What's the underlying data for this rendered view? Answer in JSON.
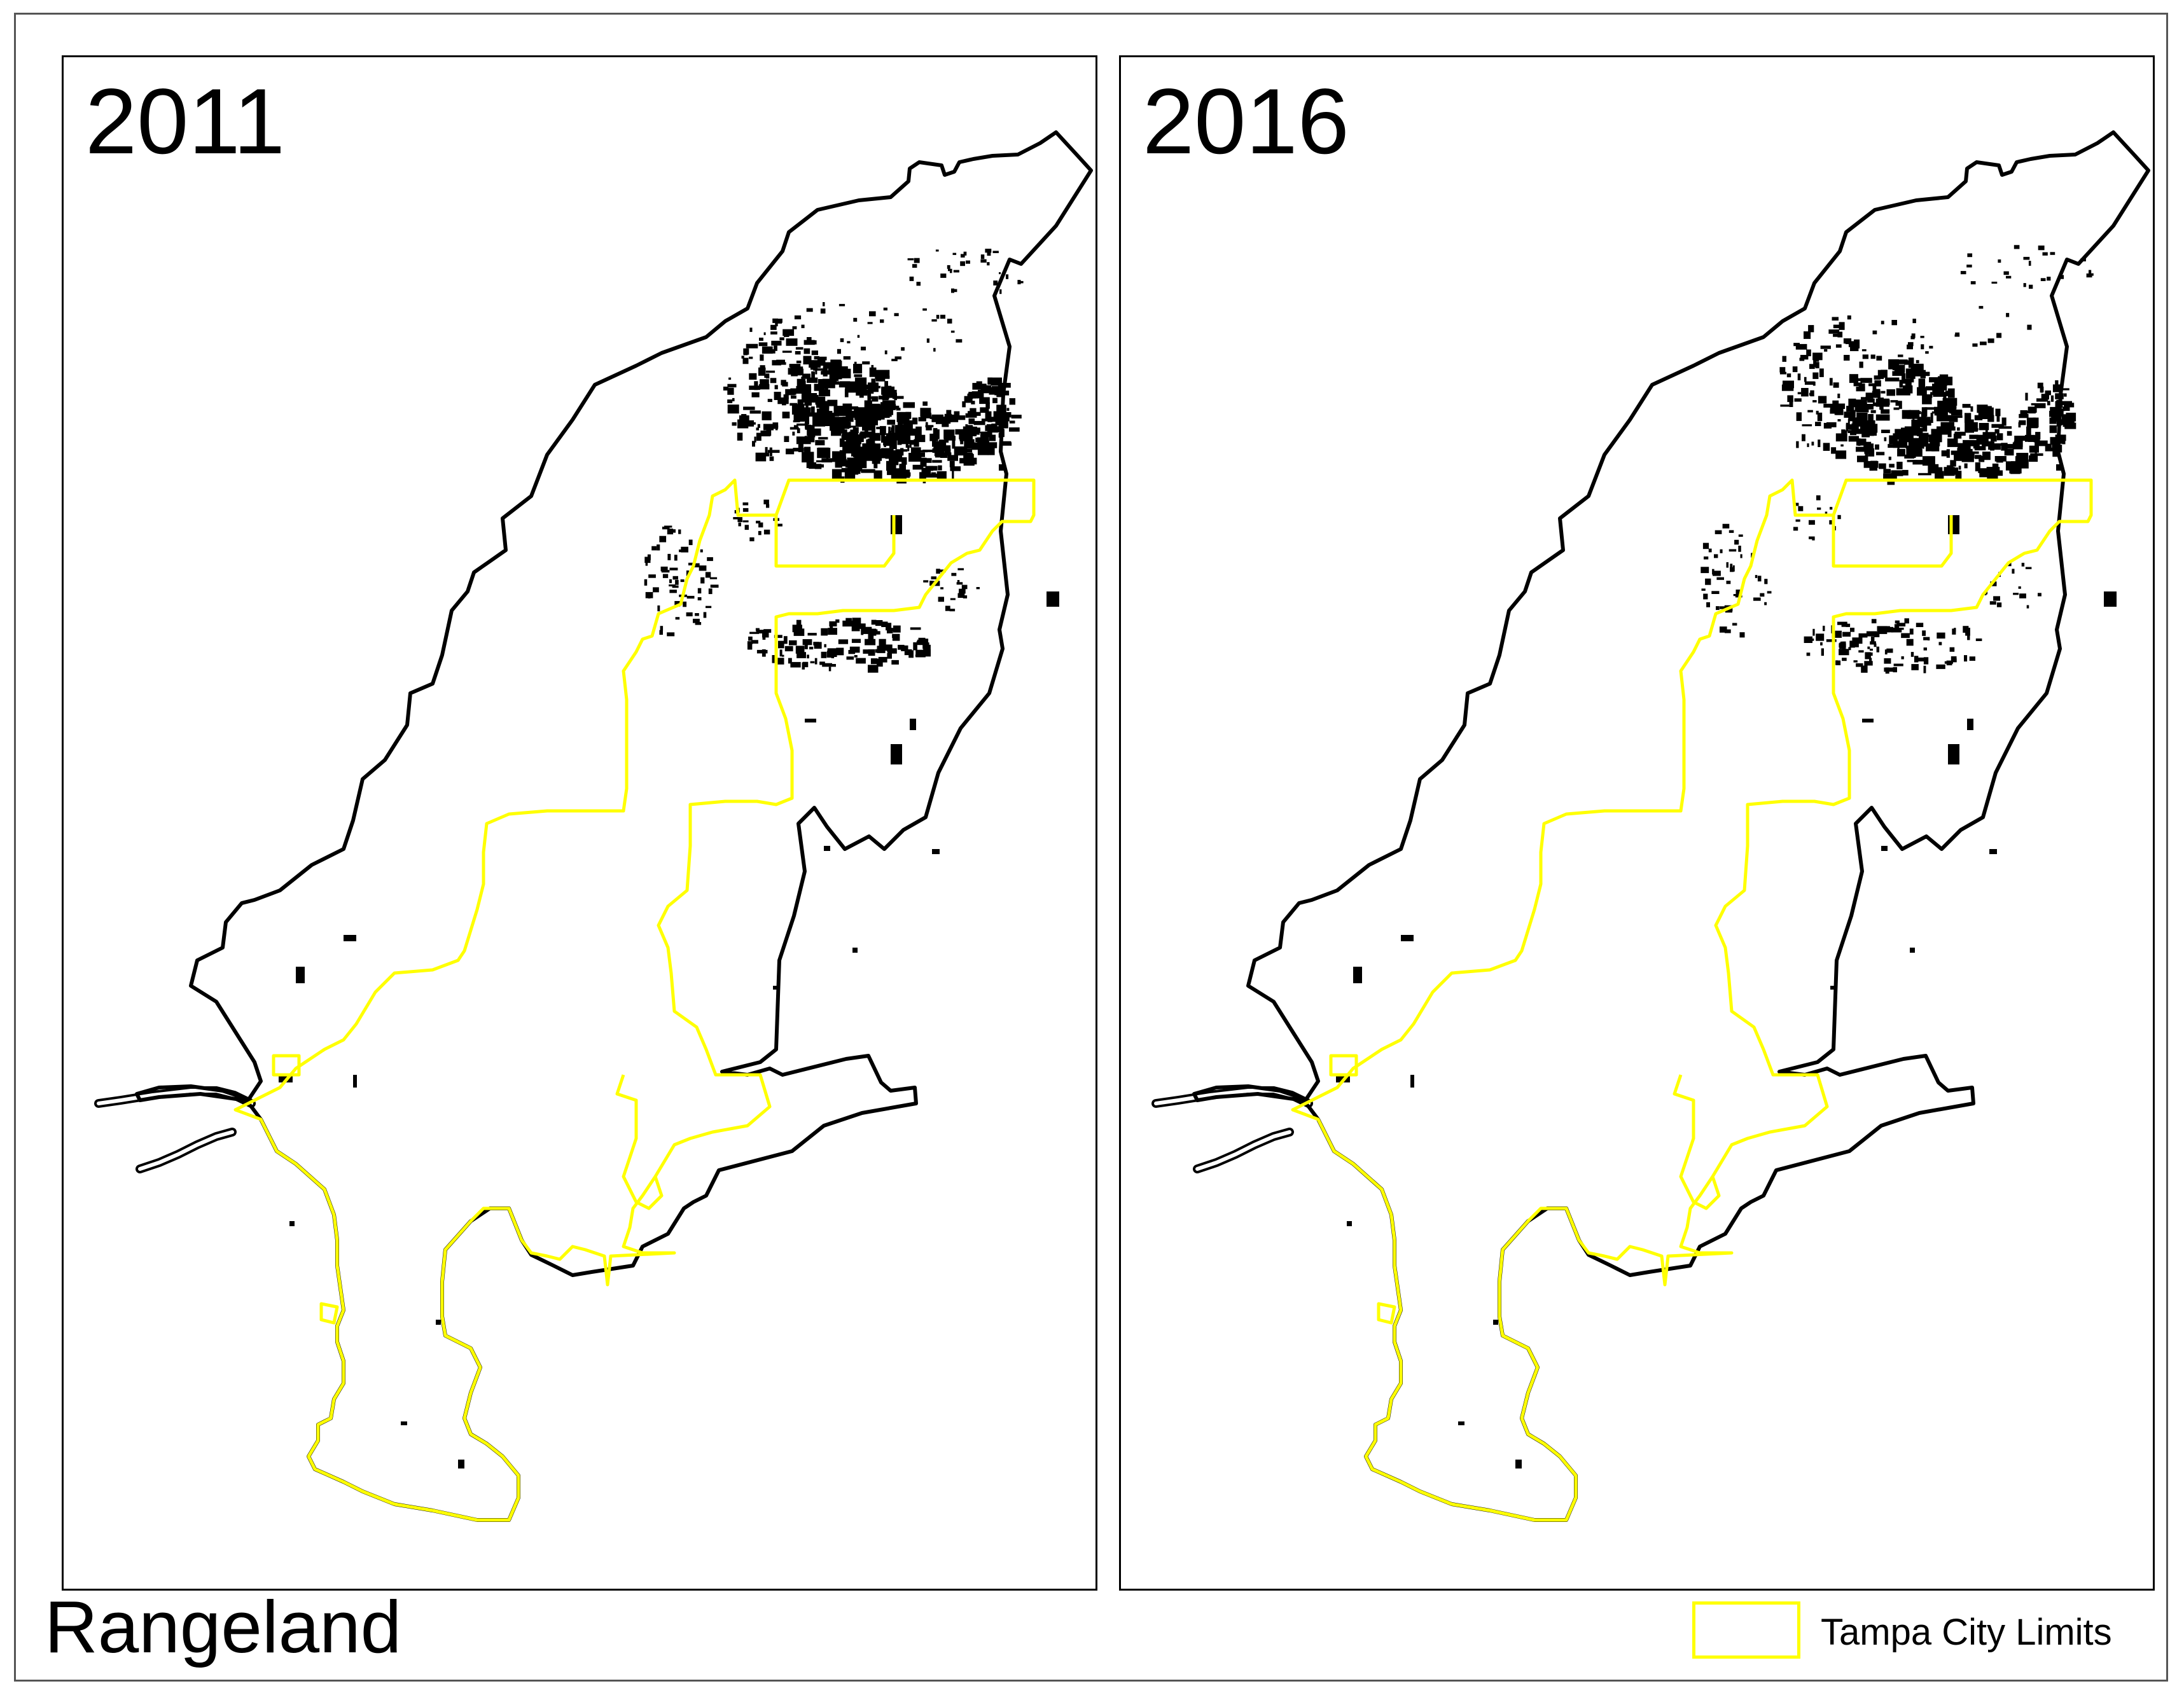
{
  "title": "Rangeland",
  "panels": [
    {
      "year": "2011"
    },
    {
      "year": "2016"
    }
  ],
  "legend": {
    "label": "Tampa City Limits",
    "color": "#ffff00"
  },
  "colors": {
    "county_outline": "#000000",
    "rangeland_patches": "#000000",
    "city_limits": "#ffff00",
    "background": "#ffffff"
  }
}
